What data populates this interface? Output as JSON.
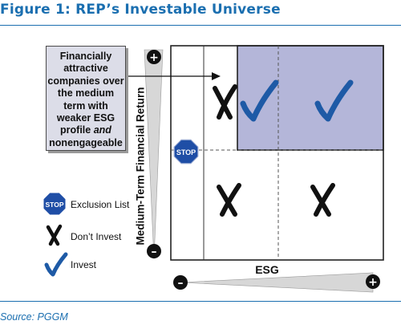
{
  "title": "Figure 1: REP’s Investable Universe",
  "callout": {
    "lines": [
      "Financially",
      "attractive",
      "companies over",
      "the medium",
      "term with",
      "weaker ESG",
      "profile"
    ],
    "line7_and": "and",
    "line8": "nonengageable"
  },
  "axes": {
    "y_label": "Medium-Term Financial Return",
    "x_label": "ESG",
    "y_top_sign": "+",
    "y_bottom_sign": "–",
    "x_left_sign": "–",
    "x_right_sign": "+"
  },
  "stop_sign_text": "STOP",
  "legend": {
    "exclusion": "Exclusion List",
    "dont_invest": "Don’t Invest",
    "invest": "Invest"
  },
  "source": "Source: PGGM",
  "colors": {
    "title_blue": "#1b6fb0",
    "check_blue": "#1e5aa6",
    "invest_fill": "#b4b6d9",
    "stop_blue": "#1f4ea6",
    "callout_fill": "#dcdde8"
  }
}
